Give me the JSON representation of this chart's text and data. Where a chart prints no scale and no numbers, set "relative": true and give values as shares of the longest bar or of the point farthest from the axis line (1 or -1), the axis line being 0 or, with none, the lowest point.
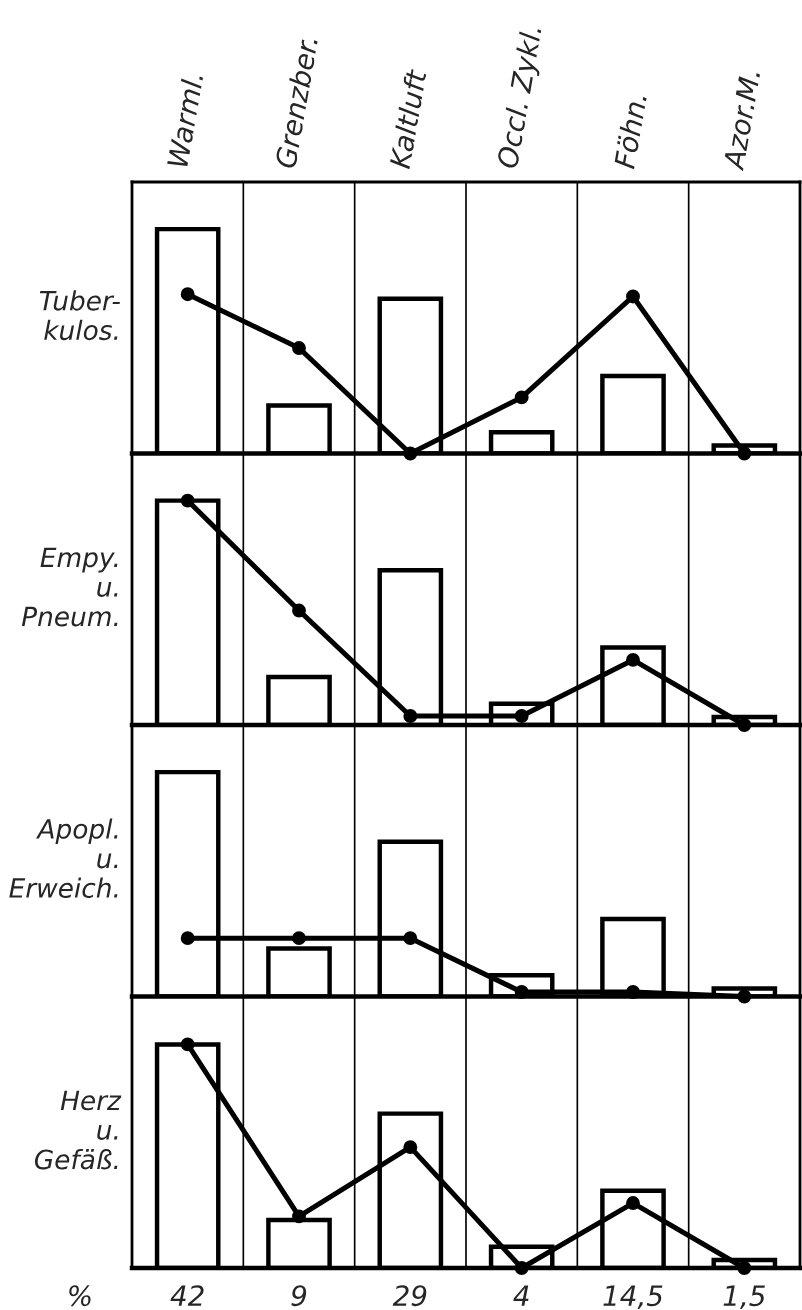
{
  "chart_data": [
    {
      "type": "bar",
      "relative": true,
      "ylabel": "Tuber-\nkulos.",
      "categories": [
        "Warml.",
        "Grenzber.",
        "Kaltluft",
        "Occl. Zykl.",
        "Föhn.",
        "Azor.M."
      ],
      "tick_labels": "x",
      "grid": "x",
      "marker": "circle",
      "line_style": "solid",
      "series": [
        {
          "color": "#ffffff",
          "values": [
            1,
            0.214,
            0.69,
            0.095,
            0.345,
            0.036
          ]
        },
        {
          "type": "line",
          "color": "#000000",
          "values": [
            0.71,
            0.47,
            0,
            0.25,
            0.7,
            0
          ]
        }
      ]
    },
    {
      "type": "bar",
      "relative": true,
      "ylabel": "Empy.\nu.\nPneum.",
      "categories": [
        null,
        null,
        null,
        null,
        null,
        null
      ],
      "tick_labels": false,
      "grid": "x",
      "marker": "circle",
      "line_style": "solid",
      "series": [
        {
          "color": "#ffffff",
          "values": [
            1,
            0.214,
            0.69,
            0.095,
            0.345,
            0.036
          ]
        },
        {
          "type": "line",
          "color": "#000000",
          "values": [
            1,
            0.51,
            0.04,
            0.04,
            0.29,
            0
          ]
        }
      ]
    },
    {
      "type": "bar",
      "relative": true,
      "ylabel": "Apopl.\nu.\nErweich.",
      "categories": [
        null,
        null,
        null,
        null,
        null,
        null
      ],
      "tick_labels": false,
      "grid": "x",
      "marker": "circle",
      "line_style": "solid",
      "series": [
        {
          "color": "#ffffff",
          "values": [
            1,
            0.214,
            0.69,
            0.095,
            0.345,
            0.036
          ]
        },
        {
          "type": "line",
          "color": "#000000",
          "values": [
            0.26,
            0.26,
            0.26,
            0.02,
            0.02,
            0
          ]
        }
      ]
    },
    {
      "type": "bar",
      "ylabel": "Herz\nu.\nGefäß.",
      "categories": [
        null,
        null,
        null,
        null,
        null,
        null
      ],
      "tick_labels": false,
      "grid": "x",
      "marker": "circle",
      "line_style": "solid",
      "ylim": [
        0,
        51
      ],
      "annotations": [
        "%"
      ],
      "series": [
        {
          "color": "#ffffff",
          "values": [
            42,
            9,
            29,
            4,
            14.5,
            1.5
          ],
          "value_labels": [
            "42",
            "9",
            "29",
            "4",
            "14,5",
            "1,5"
          ]
        },
        {
          "type": "line",
          "color": "#000000",
          "values": [
            42,
            9.7,
            22.7,
            0,
            12.2,
            0
          ]
        }
      ]
    }
  ]
}
